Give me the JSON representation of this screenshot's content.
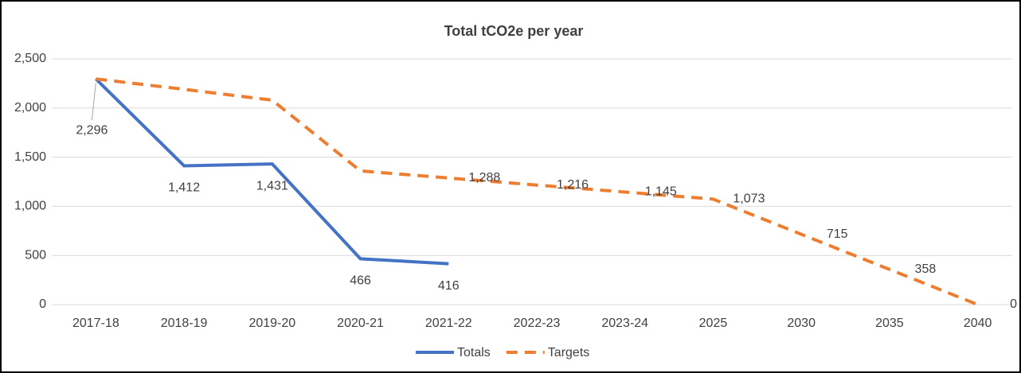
{
  "chart_data": {
    "type": "line",
    "title": "Total tCO2e per year",
    "categories": [
      "2017-18",
      "2018-19",
      "2019-20",
      "2020-21",
      "2021-22",
      "2022-23",
      "2023-24",
      "2025",
      "2030",
      "2035",
      "2040"
    ],
    "series": [
      {
        "name": "Totals",
        "color": "#4472c4",
        "dashed": false,
        "values": [
          2296,
          1412,
          1431,
          466,
          416,
          null,
          null,
          null,
          null,
          null,
          null
        ],
        "value_labels": [
          "2,296",
          "1,412",
          "1,431",
          "466",
          "416",
          null,
          null,
          null,
          null,
          null,
          null
        ]
      },
      {
        "name": "Targets",
        "color": "#ed7d31",
        "dashed": true,
        "values": [
          2296,
          2190,
          2080,
          1360,
          1288,
          1216,
          1145,
          1073,
          715,
          358,
          0
        ],
        "value_labels": [
          null,
          null,
          null,
          null,
          "1,288",
          "1,216",
          "1,145",
          "1,073",
          "715",
          "358",
          "0"
        ]
      }
    ],
    "ylim": [
      0,
      2500
    ],
    "yticks": [
      0,
      {
        "value": 500,
        "label": "500"
      },
      {
        "value": 1000,
        "label": "1,000"
      },
      {
        "value": 1500,
        "label": "1,500"
      },
      {
        "value": 2000,
        "label": "2,000"
      },
      {
        "value": 2500,
        "label": "2,500"
      }
    ],
    "grid": true,
    "legend": "bottom"
  }
}
